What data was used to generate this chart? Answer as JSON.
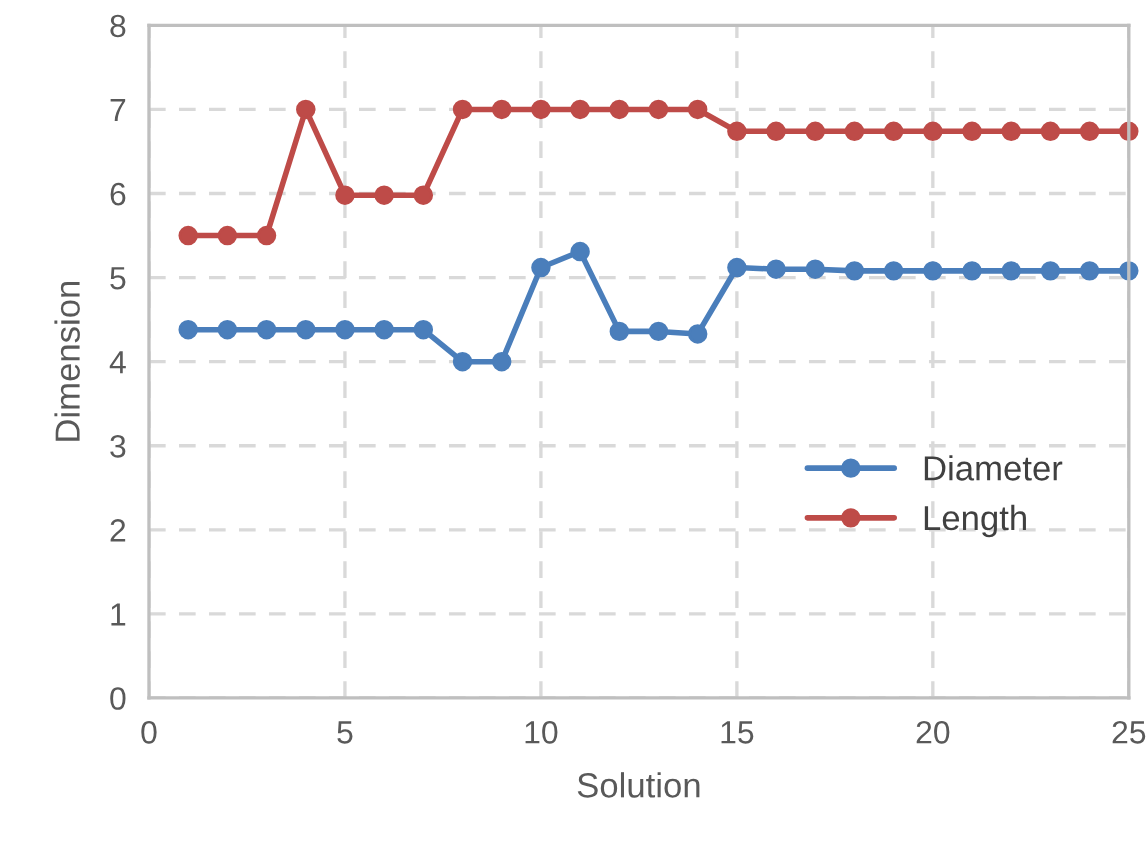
{
  "chart_data": {
    "type": "line",
    "xlabel": "Solution",
    "ylabel": "Dimension",
    "x": [
      1,
      2,
      3,
      4,
      5,
      6,
      7,
      8,
      9,
      10,
      11,
      12,
      13,
      14,
      15,
      16,
      17,
      18,
      19,
      20,
      21,
      22,
      23,
      24,
      25
    ],
    "series": [
      {
        "name": "Diameter",
        "color": "#4a7ebb",
        "values": [
          4.38,
          4.38,
          4.38,
          4.38,
          4.38,
          4.38,
          4.38,
          4.0,
          4.0,
          5.12,
          5.31,
          4.36,
          4.36,
          4.33,
          5.12,
          5.1,
          5.1,
          5.08,
          5.08,
          5.08,
          5.08,
          5.08,
          5.08,
          5.08,
          5.08
        ]
      },
      {
        "name": "Length",
        "color": "#be4b48",
        "values": [
          5.5,
          5.5,
          5.5,
          7.0,
          5.98,
          5.98,
          5.98,
          7.0,
          7.0,
          7.0,
          7.0,
          7.0,
          7.0,
          7.0,
          6.74,
          6.74,
          6.74,
          6.74,
          6.74,
          6.74,
          6.74,
          6.74,
          6.74,
          6.74,
          6.74
        ]
      }
    ],
    "xlim": [
      0,
      25
    ],
    "ylim": [
      0,
      8
    ],
    "xticks": [
      0,
      5,
      10,
      15,
      20,
      25
    ],
    "yticks": [
      0,
      1,
      2,
      3,
      4,
      5,
      6,
      7,
      8
    ],
    "grid": true,
    "legend": "right",
    "marker": "circle",
    "line_style": "solid"
  }
}
